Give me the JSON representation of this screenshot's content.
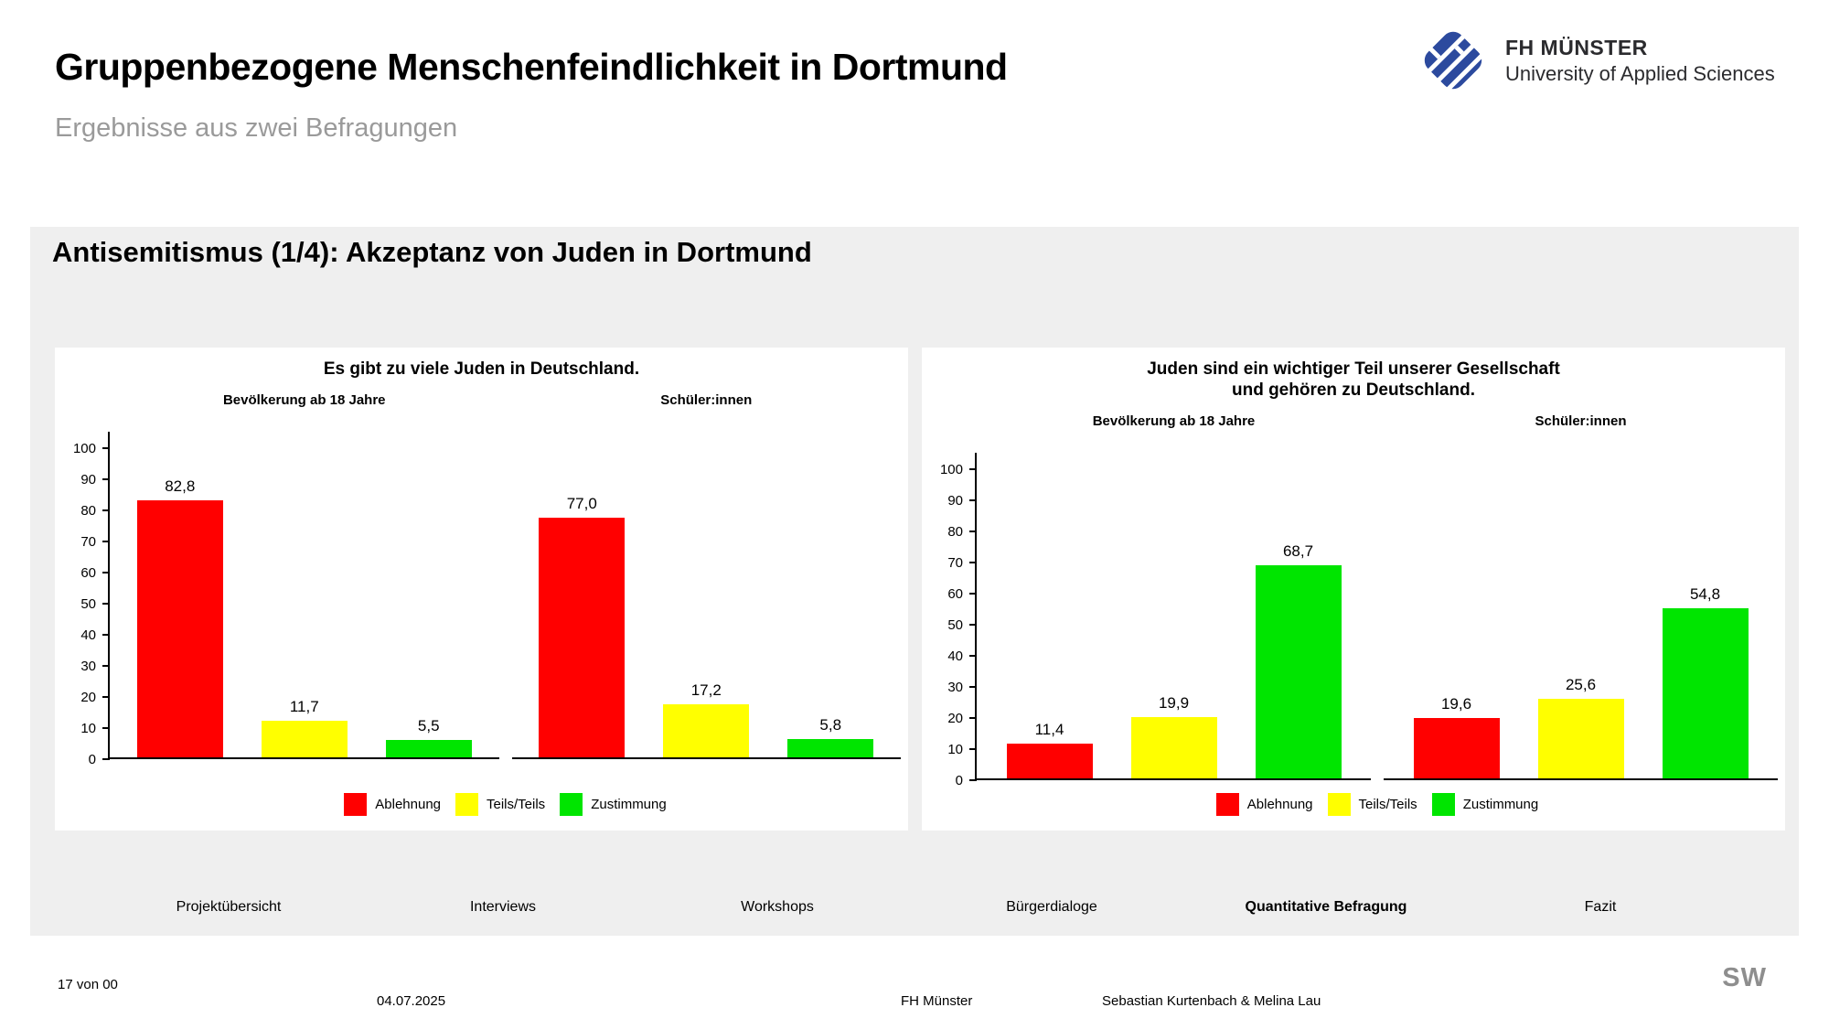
{
  "header": {
    "title": "Gruppenbezogene Menschenfeindlichkeit in Dortmund",
    "subtitle": "Ergebnisse aus zwei Befragungen",
    "logo": {
      "name": "FH MÜNSTER",
      "subname": "University of Applied Sciences",
      "brand_color": "#2c4a9e"
    }
  },
  "section": {
    "heading": "Antisemitismus (1/4): Akzeptanz von Juden in Dortmund"
  },
  "chart_data": [
    {
      "type": "bar",
      "title": "Es gibt zu viele Juden in Deutschland.",
      "title_lines": [
        "Es gibt zu viele Juden in Deutschland."
      ],
      "facets": [
        "Bevölkerung ab 18 Jahre",
        "Schüler:innen"
      ],
      "categories": [
        "Ablehnung",
        "Teils/Teils",
        "Zustimmung"
      ],
      "series": [
        {
          "name": "Bevölkerung ab 18 Jahre",
          "values": [
            82.8,
            11.7,
            5.5
          ]
        },
        {
          "name": "Schüler:innen",
          "values": [
            77.0,
            17.2,
            5.8
          ]
        }
      ],
      "colors": {
        "Ablehnung": "#ff0000",
        "Teils/Teils": "#ffff00",
        "Zustimmung": "#00e500"
      },
      "legend": [
        "Ablehnung",
        "Teils/Teils",
        "Zustimmung"
      ],
      "legend_position": "bottom",
      "ylim": [
        0,
        100
      ],
      "yticks": [
        0,
        10,
        20,
        30,
        40,
        50,
        60,
        70,
        80,
        90,
        100
      ],
      "grid": false,
      "value_decimal_separator": ","
    },
    {
      "type": "bar",
      "title": "Juden sind ein wichtiger Teil unserer Gesellschaft und gehören zu Deutschland.",
      "title_lines": [
        "Juden sind ein wichtiger Teil unserer Gesellschaft",
        "und gehören zu Deutschland."
      ],
      "facets": [
        "Bevölkerung ab 18 Jahre",
        "Schüler:innen"
      ],
      "categories": [
        "Ablehnung",
        "Teils/Teils",
        "Zustimmung"
      ],
      "series": [
        {
          "name": "Bevölkerung ab 18 Jahre",
          "values": [
            11.4,
            19.9,
            68.7
          ]
        },
        {
          "name": "Schüler:innen",
          "values": [
            19.6,
            25.6,
            54.8
          ]
        }
      ],
      "colors": {
        "Ablehnung": "#ff0000",
        "Teils/Teils": "#ffff00",
        "Zustimmung": "#00e500"
      },
      "legend": [
        "Ablehnung",
        "Teils/Teils",
        "Zustimmung"
      ],
      "legend_position": "bottom",
      "ylim": [
        0,
        100
      ],
      "yticks": [
        0,
        10,
        20,
        30,
        40,
        50,
        60,
        70,
        80,
        90,
        100
      ],
      "grid": false,
      "value_decimal_separator": ","
    }
  ],
  "nav": {
    "items": [
      {
        "label": "Projektübersicht",
        "active": false
      },
      {
        "label": "Interviews",
        "active": false
      },
      {
        "label": "Workshops",
        "active": false
      },
      {
        "label": "Bürgerdialoge",
        "active": false
      },
      {
        "label": "Quantitative Befragung",
        "active": true
      },
      {
        "label": "Fazit",
        "active": false
      }
    ]
  },
  "footer": {
    "page": "17 von 00",
    "date": "04.07.2025",
    "org": "FH Münster",
    "authors": "Sebastian Kurtenbach & Melina Lau",
    "mark": "SW"
  }
}
